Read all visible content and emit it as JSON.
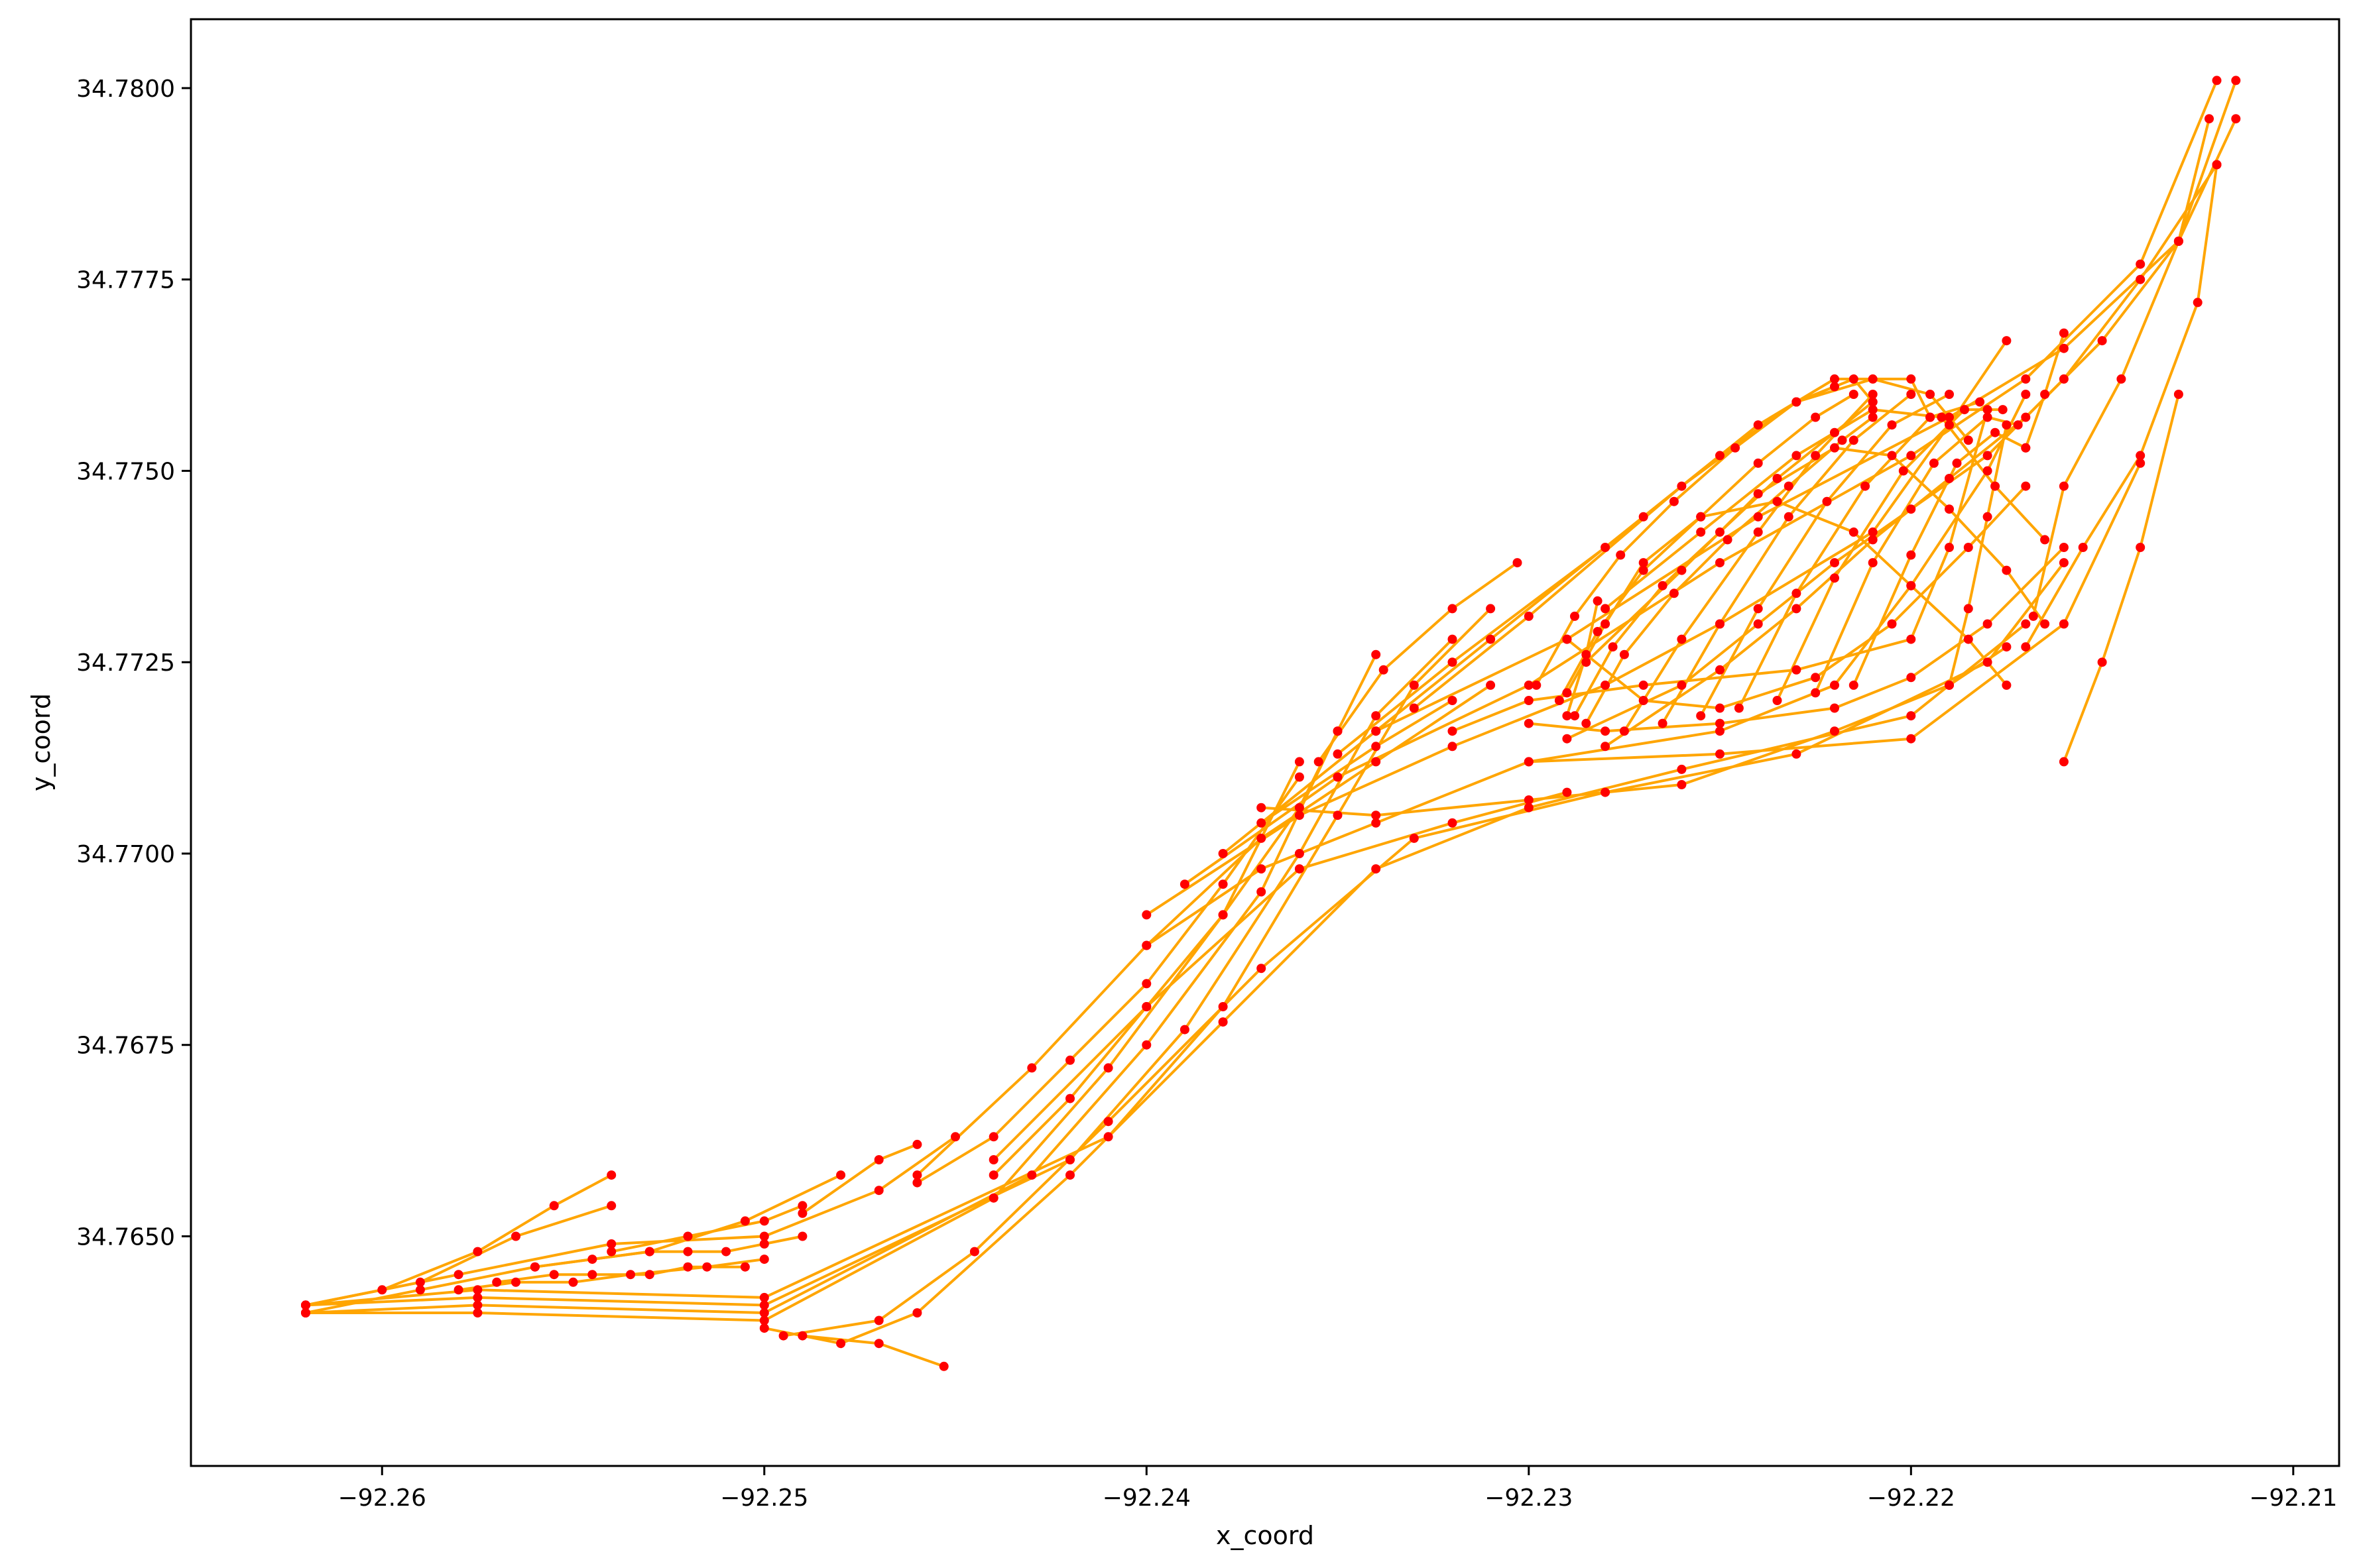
{
  "chart_data": {
    "type": "line",
    "title": "",
    "xlabel": "x_coord",
    "ylabel": "y_coord",
    "xlim": [
      -92.265,
      -92.2088
    ],
    "ylim": [
      34.762,
      34.7809
    ],
    "x_ticks": [
      -92.26,
      -92.25,
      -92.24,
      -92.23,
      -92.22,
      -92.21
    ],
    "x_tick_labels": [
      "−92.26",
      "−92.25",
      "−92.24",
      "−92.23",
      "−92.22",
      "−92.21"
    ],
    "y_ticks": [
      34.765,
      34.7675,
      34.77,
      34.7725,
      34.775,
      34.7775,
      34.78
    ],
    "y_tick_labels": [
      "34.7650",
      "34.7675",
      "34.7700",
      "34.7725",
      "34.7750",
      "34.7775",
      "34.7800"
    ],
    "grid": false,
    "legend": false,
    "colors": {
      "line": "#FFA500",
      "marker": "#FF0000",
      "axes": "#000000"
    },
    "series": [
      {
        "x": [
          -92.262,
          -92.26,
          -92.2575,
          -92.2555,
          -92.254
        ],
        "y": [
          34.7641,
          34.7643,
          34.7648,
          34.7654,
          34.7658
        ]
      },
      {
        "x": [
          -92.262,
          -92.259,
          -92.256,
          -92.253,
          -92.2505,
          -92.248
        ],
        "y": [
          34.764,
          34.7643,
          34.7646,
          34.7648,
          34.7652,
          34.7658
        ]
      },
      {
        "x": [
          -92.262,
          -92.259,
          -92.2565,
          -92.254
        ],
        "y": [
          34.7641,
          34.7644,
          34.765,
          34.7654
        ]
      },
      {
        "x": [
          -92.262,
          -92.258,
          -92.254,
          -92.25,
          -92.247,
          -92.245
        ],
        "y": [
          34.7641,
          34.7645,
          34.7649,
          34.765,
          34.7656,
          34.7663
        ]
      },
      {
        "x": [
          -92.262,
          -92.2575,
          -92.25,
          -92.244,
          -92.241,
          -92.238,
          -92.236
        ],
        "y": [
          34.764,
          34.764,
          34.7639,
          34.7655,
          34.7672,
          34.7692,
          34.7712
        ]
      },
      {
        "x": [
          -92.262,
          -92.2575,
          -92.25,
          -92.243,
          -92.24,
          -92.237,
          -92.235
        ],
        "y": [
          34.764,
          34.7641,
          34.764,
          34.7658,
          34.7675,
          34.7695,
          34.7716
        ]
      },
      {
        "x": [
          -92.262,
          -92.2575,
          -92.25,
          -92.242,
          -92.239,
          -92.236,
          -92.234,
          -92.232
        ],
        "y": [
          34.7641,
          34.7642,
          34.7641,
          34.766,
          34.7677,
          34.77,
          34.7718,
          34.7728
        ]
      },
      {
        "x": [
          -92.262,
          -92.2575,
          -92.25,
          -92.241,
          -92.238,
          -92.235,
          -92.233,
          -92.231
        ],
        "y": [
          34.7641,
          34.7643,
          34.7642,
          34.7663,
          34.768,
          34.7705,
          34.7722,
          34.7732
        ]
      },
      {
        "x": [
          -92.25,
          -92.248,
          -92.246,
          -92.242,
          -92.238,
          -92.234,
          -92.23,
          -92.226,
          -92.22,
          -92.217
        ],
        "y": [
          34.7638,
          34.7636,
          34.764,
          34.7658,
          34.7678,
          34.7698,
          34.7706,
          34.7711,
          34.7718,
          34.773
        ]
      },
      {
        "x": [
          -92.2495,
          -92.247,
          -92.2445,
          -92.241,
          -92.237,
          -92.233,
          -92.228,
          -92.223,
          -92.218,
          -92.216
        ],
        "y": [
          34.7637,
          34.7639,
          34.7648,
          34.7665,
          34.7685,
          34.7702,
          34.7708,
          34.7713,
          34.7725,
          34.7738
        ]
      },
      {
        "x": [
          -92.249,
          -92.247,
          -92.2453
        ],
        "y": [
          34.7637,
          34.7636,
          34.7633
        ]
      },
      {
        "x": [
          -92.24,
          -92.237,
          -92.234,
          -92.23,
          -92.225,
          -92.222,
          -92.22,
          -92.218,
          -92.217
        ],
        "y": [
          34.7688,
          34.7698,
          34.7704,
          34.7712,
          34.7716,
          34.7722,
          34.7735,
          34.775,
          34.776
        ]
      },
      {
        "x": [
          -92.24,
          -92.236,
          -92.232,
          -92.228,
          -92.225,
          -92.221,
          -92.219,
          -92.2175
        ],
        "y": [
          34.7692,
          34.7705,
          34.7714,
          34.7722,
          34.773,
          34.7742,
          34.7756,
          34.7767
        ]
      },
      {
        "x": [
          -92.239,
          -92.235,
          -92.23,
          -92.225,
          -92.22,
          -92.217,
          -92.214,
          -92.212
        ],
        "y": [
          34.7696,
          34.771,
          34.7722,
          34.7738,
          34.7752,
          34.7762,
          34.7777,
          34.7801
        ]
      },
      {
        "x": [
          -92.238,
          -92.234,
          -92.229,
          -92.224,
          -92.219,
          -92.216,
          -92.213,
          -92.2115
        ],
        "y": [
          34.77,
          34.7716,
          34.7728,
          34.7744,
          34.7757,
          34.7766,
          34.778,
          34.7801
        ]
      },
      {
        "x": [
          -92.235,
          -92.232,
          -92.228,
          -92.225,
          -92.223,
          -92.2215,
          -92.221
        ],
        "y": [
          34.7713,
          34.7725,
          34.774,
          34.7752,
          34.7759,
          34.7762,
          34.7759
        ]
      },
      {
        "x": [
          -92.234,
          -92.231,
          -92.227,
          -92.224,
          -92.222,
          -92.22,
          -92.2195
        ],
        "y": [
          34.7716,
          34.7728,
          34.7744,
          34.7756,
          34.7762,
          34.7762,
          34.7757
        ]
      },
      {
        "x": [
          -92.233,
          -92.23,
          -92.226,
          -92.223,
          -92.221,
          -92.2195,
          -92.2185
        ],
        "y": [
          34.7719,
          34.7731,
          34.7748,
          34.7759,
          34.7762,
          34.776,
          34.7754
        ]
      },
      {
        "x": [
          -92.229,
          -92.226,
          -92.224,
          -92.222,
          -92.22,
          -92.218,
          -92.216,
          -92.214,
          -92.212
        ],
        "y": [
          34.7715,
          34.7722,
          34.773,
          34.7738,
          34.7745,
          34.7752,
          34.7762,
          34.7775,
          34.779
        ]
      },
      {
        "x": [
          -92.228,
          -92.225,
          -92.223,
          -92.221,
          -92.219,
          -92.217,
          -92.215,
          -92.213,
          -92.2115
        ],
        "y": [
          34.7714,
          34.7724,
          34.7732,
          34.7741,
          34.7749,
          34.7757,
          34.7767,
          34.778,
          34.7796
        ]
      },
      {
        "x": [
          -92.229,
          -92.228,
          -92.227,
          -92.2255,
          -92.2235,
          -92.2215,
          -92.22,
          -92.2185,
          -92.2175
        ],
        "y": [
          34.7721,
          34.773,
          34.7738,
          34.7744,
          34.7746,
          34.7742,
          34.7735,
          34.7728,
          34.7722
        ]
      },
      {
        "x": [
          -92.2285,
          -92.226,
          -92.224,
          -92.222,
          -92.2205,
          -92.219,
          -92.2175,
          -92.2165
        ],
        "y": [
          34.7725,
          34.7737,
          34.7747,
          34.7753,
          34.7752,
          34.7745,
          34.7737,
          34.773
        ]
      },
      {
        "x": [
          -92.228,
          -92.2255,
          -92.223,
          -92.221,
          -92.2192,
          -92.2178,
          -92.2165
        ],
        "y": [
          34.7732,
          34.7742,
          34.7752,
          34.7758,
          34.7757,
          34.7748,
          34.7741
        ]
      },
      {
        "x": [
          -92.229,
          -92.227,
          -92.225,
          -92.2225,
          -92.2205,
          -92.2185,
          -92.217
        ],
        "y": [
          34.7728,
          34.772,
          34.7719,
          34.7723,
          34.773,
          34.774,
          34.7748
        ]
      },
      {
        "x": [
          -92.23,
          -92.228,
          -92.225,
          -92.222,
          -92.22,
          -92.218,
          -92.216
        ],
        "y": [
          34.7717,
          34.7716,
          34.7717,
          34.7719,
          34.7723,
          34.773,
          34.774
        ]
      },
      {
        "x": [
          -92.232,
          -92.23,
          -92.227,
          -92.223,
          -92.22,
          -92.219,
          -92.218
        ],
        "y": [
          34.7716,
          34.772,
          34.7722,
          34.7724,
          34.7728,
          34.774,
          34.7758
        ]
      },
      {
        "x": [
          -92.237,
          -92.234,
          -92.23,
          -92.226,
          -92.222,
          -92.219,
          -92.2175
        ],
        "y": [
          34.7706,
          34.7705,
          34.7707,
          34.7709,
          34.7716,
          34.7722,
          34.7727
        ]
      },
      {
        "x": [
          -92.244,
          -92.24,
          -92.236,
          -92.232,
          -92.229
        ],
        "y": [
          34.766,
          34.768,
          34.7698,
          34.7704,
          34.7708
        ]
      },
      {
        "x": [
          -92.246,
          -92.243,
          -92.24,
          -92.237,
          -92.234,
          -92.231
        ],
        "y": [
          34.7658,
          34.7672,
          34.7688,
          34.7702,
          34.7712,
          34.7722
        ]
      },
      {
        "x": [
          -92.23,
          -92.225,
          -92.22,
          -92.216,
          -92.214
        ],
        "y": [
          34.7712,
          34.7713,
          34.7715,
          34.773,
          34.7751
        ]
      },
      {
        "x": [
          -92.217,
          -92.2155,
          -92.214,
          -92.2125,
          -92.212
        ],
        "y": [
          34.7727,
          34.774,
          34.7752,
          34.7772,
          34.779
        ]
      },
      {
        "x": [
          -92.2168,
          -92.216,
          -92.2145,
          -92.213,
          -92.2122
        ],
        "y": [
          34.7731,
          34.7748,
          34.7762,
          34.778,
          34.7796
        ]
      },
      {
        "x": [
          -92.217,
          -92.2165,
          -92.216
        ],
        "y": [
          34.7753,
          34.776,
          34.7768
        ]
      },
      {
        "x": [
          -92.229,
          -92.2285,
          -92.2282
        ],
        "y": [
          34.7718,
          34.7726,
          34.7733
        ]
      },
      {
        "x": [
          -92.244,
          -92.242,
          -92.24,
          -92.238,
          -92.236,
          -92.235,
          -92.234
        ],
        "y": [
          34.7658,
          34.7668,
          34.768,
          34.7692,
          34.7706,
          34.7716,
          34.7726
        ]
      },
      {
        "x": [
          -92.246,
          -92.244,
          -92.242,
          -92.24,
          -92.238,
          -92.236
        ],
        "y": [
          34.7657,
          34.7663,
          34.7673,
          34.7683,
          34.7696,
          34.771
        ]
      },
      {
        "x": [
          -92.249,
          -92.247,
          -92.246
        ],
        "y": [
          34.7653,
          34.766,
          34.7662
        ]
      },
      {
        "x": [
          -92.254,
          -92.252,
          -92.25,
          -92.249
        ],
        "y": [
          34.7648,
          34.765,
          34.7652,
          34.7654
        ]
      },
      {
        "x": [
          -92.256,
          -92.2545,
          -92.253,
          -92.252,
          -92.251,
          -92.25,
          -92.249
        ],
        "y": [
          34.7646,
          34.7647,
          34.7648,
          34.7648,
          34.7648,
          34.7649,
          34.765
        ]
      },
      {
        "x": [
          -92.257,
          -92.2555,
          -92.2545,
          -92.253,
          -92.252,
          -92.2505
        ],
        "y": [
          34.7644,
          34.7645,
          34.7645,
          34.7645,
          34.7646,
          34.7646
        ]
      },
      {
        "x": [
          -92.258,
          -92.2565,
          -92.255,
          -92.2535,
          -92.2515,
          -92.25
        ],
        "y": [
          34.7643,
          34.7644,
          34.7644,
          34.7645,
          34.7646,
          34.7647
        ]
      },
      {
        "x": [
          -92.237,
          -92.234,
          -92.232
        ],
        "y": [
          34.7704,
          34.7714,
          34.772
        ]
      },
      {
        "x": [
          -92.2355,
          -92.2338,
          -92.232,
          -92.2303
        ],
        "y": [
          34.7712,
          34.7724,
          34.7732,
          34.7738
        ]
      },
      {
        "x": [
          -92.2275,
          -92.226,
          -92.224,
          -92.2225,
          -92.221
        ],
        "y": [
          34.7716,
          34.7728,
          34.7742,
          34.7752,
          34.776
        ]
      },
      {
        "x": [
          -92.2265,
          -92.225,
          -92.2232,
          -92.2215,
          -92.22
        ],
        "y": [
          34.7717,
          34.773,
          34.7744,
          34.7754,
          34.776
        ]
      },
      {
        "x": [
          -92.2255,
          -92.224,
          -92.2222,
          -92.2205,
          -92.219
        ],
        "y": [
          34.7718,
          34.7732,
          34.7746,
          34.7756,
          34.776
        ]
      },
      {
        "x": [
          -92.2245,
          -92.223,
          -92.2212,
          -92.2195,
          -92.2182
        ],
        "y": [
          34.7719,
          34.7734,
          34.7748,
          34.7757,
          34.7759
        ]
      },
      {
        "x": [
          -92.2235,
          -92.222,
          -92.2202,
          -92.2186,
          -92.2176
        ],
        "y": [
          34.772,
          34.7736,
          34.775,
          34.7758,
          34.7758
        ]
      },
      {
        "x": [
          -92.2225,
          -92.221,
          -92.2194,
          -92.218,
          -92.2172
        ],
        "y": [
          34.7721,
          34.7738,
          34.7751,
          34.7757,
          34.7756
        ]
      },
      {
        "x": [
          -92.2215,
          -92.22,
          -92.2188,
          -92.2178,
          -92.217
        ],
        "y": [
          34.7722,
          34.7739,
          34.7751,
          34.7755,
          34.7753
        ]
      },
      {
        "x": [
          -92.2292,
          -92.2282,
          -92.227,
          -92.2255,
          -92.224,
          -92.2225,
          -92.2215
        ],
        "y": [
          34.772,
          34.7729,
          34.7737,
          34.7744,
          34.7751,
          34.7757,
          34.776
        ]
      },
      {
        "x": [
          -92.2288,
          -92.2278,
          -92.2265,
          -92.225,
          -92.2235,
          -92.222,
          -92.221
        ],
        "y": [
          34.7718,
          34.7727,
          34.7735,
          34.7742,
          34.7749,
          34.7755,
          34.7759
        ]
      },
      {
        "x": [
          -92.2298,
          -92.2288,
          -92.2276,
          -92.2262,
          -92.2246,
          -92.223,
          -92.222
        ],
        "y": [
          34.7722,
          34.7731,
          34.7739,
          34.7746,
          34.7753,
          34.7759,
          34.7761
        ]
      },
      {
        "x": [
          -92.2285,
          -92.2275,
          -92.2262,
          -92.2248,
          -92.2232,
          -92.2218,
          -92.221
        ],
        "y": [
          34.7717,
          34.7726,
          34.7734,
          34.7741,
          34.7748,
          34.7754,
          34.7757
        ]
      },
      {
        "x": [
          -92.219,
          -92.2185,
          -92.218,
          -92.2175
        ],
        "y": [
          34.7722,
          34.7732,
          34.7744,
          34.7756
        ]
      },
      {
        "x": [
          -92.216,
          -92.215,
          -92.214,
          -92.213
        ],
        "y": [
          34.7712,
          34.7725,
          34.774,
          34.776
        ]
      }
    ]
  }
}
